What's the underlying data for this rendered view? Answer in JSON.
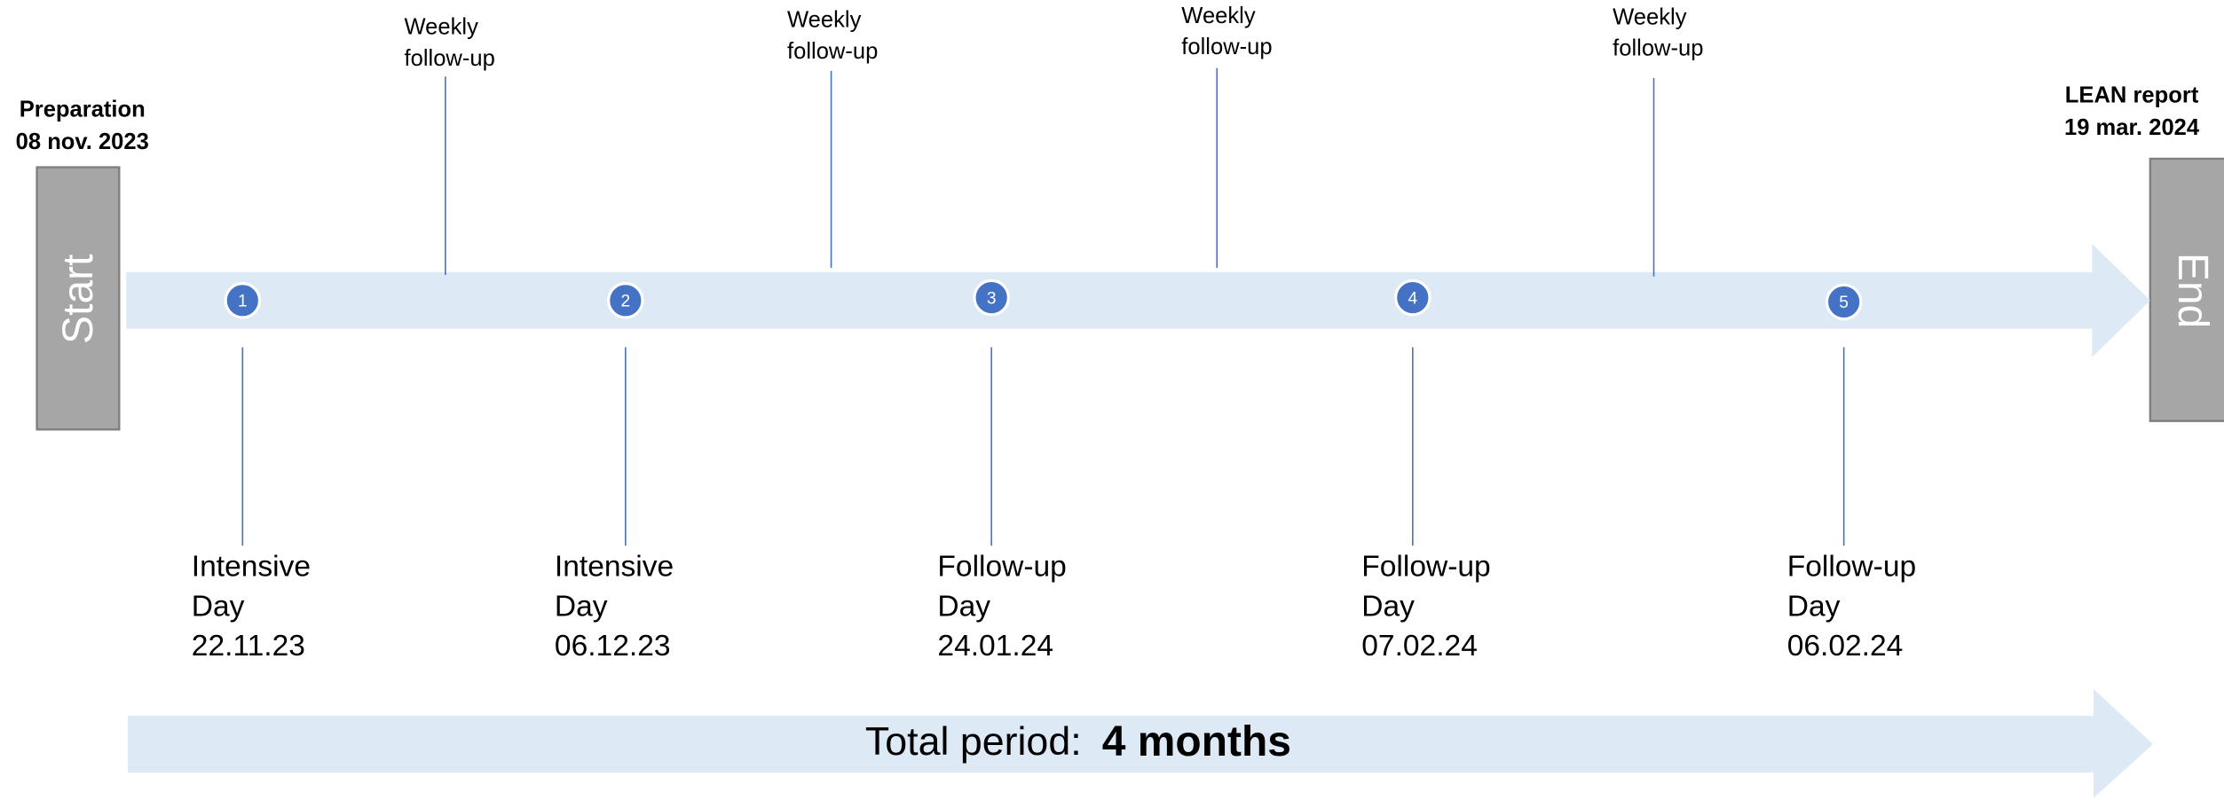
{
  "start": {
    "label": "Start",
    "title": [
      "Preparation",
      "08 nov. 2023"
    ]
  },
  "end": {
    "label": "End",
    "title": [
      "LEAN report",
      "19 mar. 2024"
    ]
  },
  "weekly": [
    {
      "lines": [
        "Weekly",
        "follow-up"
      ]
    },
    {
      "lines": [
        "Weekly",
        "follow-up"
      ]
    },
    {
      "lines": [
        "Weekly",
        "follow-up"
      ]
    },
    {
      "lines": [
        "Weekly",
        "follow-up"
      ]
    }
  ],
  "milestones": [
    {
      "number": "1",
      "lines": [
        "Intensive",
        "Day",
        "22.11.23"
      ]
    },
    {
      "number": "2",
      "lines": [
        "Intensive",
        "Day",
        "06.12.23"
      ]
    },
    {
      "number": "3",
      "lines": [
        "Follow-up",
        "Day",
        "24.01.24"
      ]
    },
    {
      "number": "4",
      "lines": [
        "Follow-up",
        "Day",
        "07.02.24"
      ]
    },
    {
      "number": "5",
      "lines": [
        "Follow-up",
        "Day",
        "06.02.24"
      ]
    }
  ],
  "total": {
    "label": "Total period:",
    "value": "4 months"
  }
}
